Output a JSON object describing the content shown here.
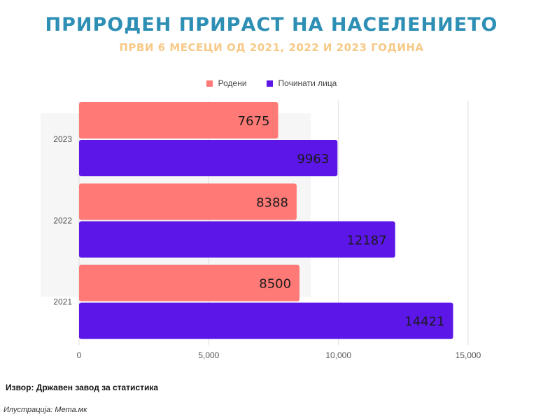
{
  "title": "ПРИРОДЕН ПРИРАСТ НА НАСЕЛЕНИЕТО",
  "subtitle": "ПРВИ 6 МЕСЕЦИ ОД 2021, 2022 И 2023 ГОДИНА",
  "source": "Извор: Државен завод за статистика",
  "credit": "Илустрација: Мета.мк",
  "colors": {
    "born": "#ff7a76",
    "deceased": "#5c17e8",
    "title": "#2e8fb5",
    "subtitle": "#f7c987"
  },
  "chart_data": {
    "type": "bar",
    "orientation": "horizontal",
    "categories": [
      "2023",
      "2022",
      "2021"
    ],
    "series": [
      {
        "name": "Родени",
        "values": [
          7675,
          8388,
          8500
        ],
        "color": "#ff7a76"
      },
      {
        "name": "Починати лица",
        "values": [
          9963,
          12187,
          14421
        ],
        "color": "#5c17e8"
      }
    ],
    "xlim": [
      0,
      15000
    ],
    "xticks": [
      "0",
      "5,000",
      "10,000",
      "15,000"
    ],
    "xtick_values": [
      0,
      5000,
      10000,
      15000
    ],
    "legend": "top-center",
    "grid": "vertical",
    "data_labels": true
  }
}
